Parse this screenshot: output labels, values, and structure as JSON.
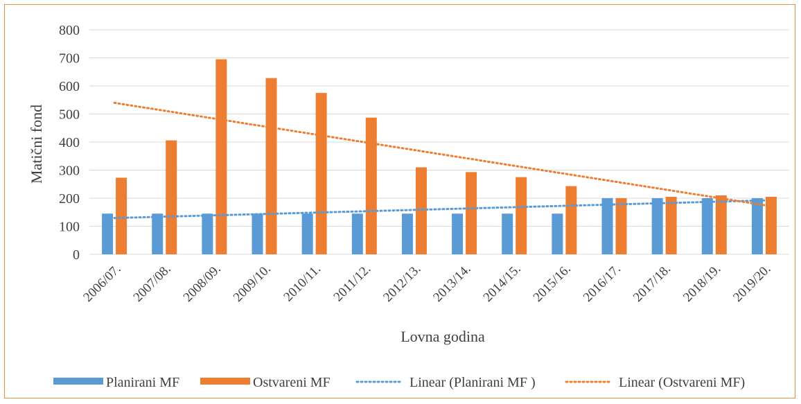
{
  "chart_data": {
    "type": "bar",
    "xlabel": "Lovna godina",
    "ylabel": "Matični fond",
    "ylim": [
      0,
      800
    ],
    "yticks": [
      0,
      100,
      200,
      300,
      400,
      500,
      600,
      700,
      800
    ],
    "categories": [
      "2006/07.",
      "2007/08.",
      "2008/09.",
      "2009/10.",
      "2010/11.",
      "2011/12.",
      "2012/13.",
      "2013/14.",
      "2014/15.",
      "2015/16.",
      "2016/17.",
      "2017/18.",
      "2018/19.",
      "2019/20."
    ],
    "series": [
      {
        "name": "Planirani MF",
        "color": "#5b9bd5",
        "values": [
          145,
          145,
          145,
          145,
          145,
          145,
          145,
          145,
          145,
          145,
          200,
          200,
          200,
          200
        ]
      },
      {
        "name": "Ostvareni MF",
        "color": "#ed7d31",
        "values": [
          273,
          406,
          695,
          628,
          575,
          487,
          310,
          293,
          275,
          243,
          200,
          205,
          210,
          205
        ]
      }
    ],
    "trendlines": [
      {
        "name": "Linear (Planirani MF )",
        "color": "#5b9bd5",
        "series_index": 0
      },
      {
        "name": "Linear (Ostvareni MF)",
        "color": "#ed7d31",
        "series_index": 1
      }
    ],
    "grid": true,
    "legend": "bottom"
  }
}
